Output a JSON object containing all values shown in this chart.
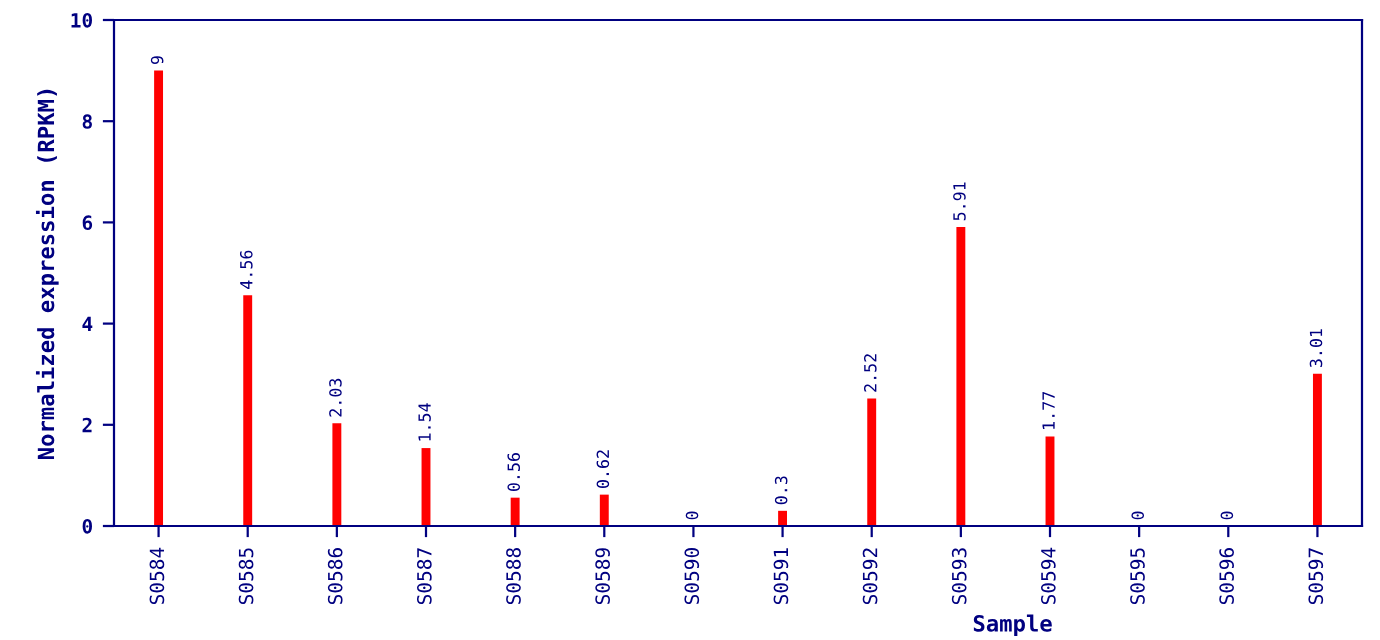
{
  "chart_data": {
    "type": "bar",
    "xlabel": "Sample",
    "ylabel": "Normalized expression (RPKM)",
    "categories": [
      "S0584",
      "S0585",
      "S0586",
      "S0587",
      "S0588",
      "S0589",
      "S0590",
      "S0591",
      "S0592",
      "S0593",
      "S0594",
      "S0595",
      "S0596",
      "S0597"
    ],
    "values": [
      9,
      4.56,
      2.03,
      1.54,
      0.56,
      0.62,
      0,
      0.3,
      2.52,
      5.91,
      1.77,
      0,
      0,
      3.01
    ],
    "color": "#ff0000",
    "data_labels": true,
    "ylim": [
      0,
      10
    ],
    "yticks": [
      0,
      2,
      4,
      6,
      8,
      10
    ],
    "grid": false,
    "legend": false
  }
}
